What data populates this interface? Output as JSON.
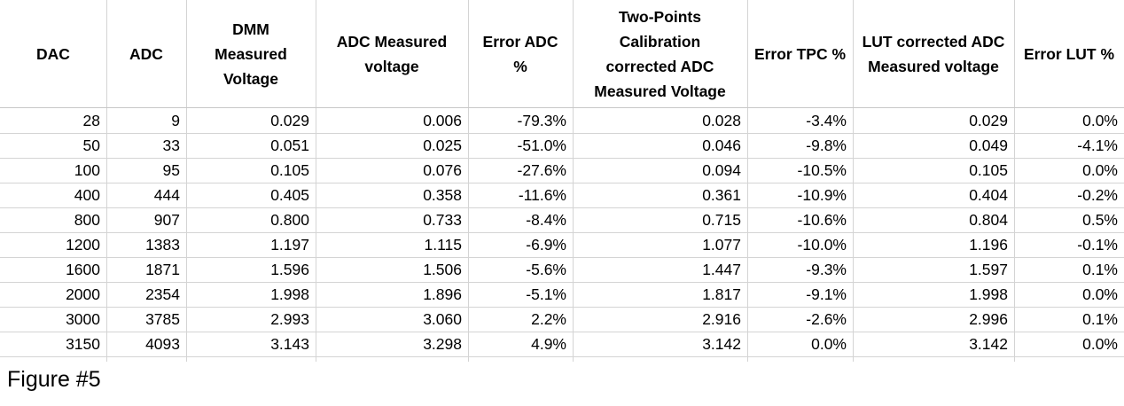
{
  "table": {
    "headers": [
      [
        "DAC"
      ],
      [
        "ADC"
      ],
      [
        "DMM",
        "Measured",
        "Voltage"
      ],
      [
        "ADC Measured",
        "voltage"
      ],
      [
        "Error ADC",
        "%"
      ],
      [
        "Two-Points",
        "Calibration",
        "corrected ADC",
        "Measured Voltage"
      ],
      [
        "Error TPC %"
      ],
      [
        "LUT corrected ADC",
        "Measured voltage"
      ],
      [
        "Error LUT %"
      ]
    ],
    "rows": [
      [
        "28",
        "9",
        "0.029",
        "0.006",
        "-79.3%",
        "0.028",
        "-3.4%",
        "0.029",
        "0.0%"
      ],
      [
        "50",
        "33",
        "0.051",
        "0.025",
        "-51.0%",
        "0.046",
        "-9.8%",
        "0.049",
        "-4.1%"
      ],
      [
        "100",
        "95",
        "0.105",
        "0.076",
        "-27.6%",
        "0.094",
        "-10.5%",
        "0.105",
        "0.0%"
      ],
      [
        "400",
        "444",
        "0.405",
        "0.358",
        "-11.6%",
        "0.361",
        "-10.9%",
        "0.404",
        "-0.2%"
      ],
      [
        "800",
        "907",
        "0.800",
        "0.733",
        "-8.4%",
        "0.715",
        "-10.6%",
        "0.804",
        "0.5%"
      ],
      [
        "1200",
        "1383",
        "1.197",
        "1.115",
        "-6.9%",
        "1.077",
        "-10.0%",
        "1.196",
        "-0.1%"
      ],
      [
        "1600",
        "1871",
        "1.596",
        "1.506",
        "-5.6%",
        "1.447",
        "-9.3%",
        "1.597",
        "0.1%"
      ],
      [
        "2000",
        "2354",
        "1.998",
        "1.896",
        "-5.1%",
        "1.817",
        "-9.1%",
        "1.998",
        "0.0%"
      ],
      [
        "3000",
        "3785",
        "2.993",
        "3.060",
        "2.2%",
        "2.916",
        "-2.6%",
        "2.996",
        "0.1%"
      ],
      [
        "3150",
        "4093",
        "3.143",
        "3.298",
        "4.9%",
        "3.142",
        "0.0%",
        "3.142",
        "0.0%"
      ]
    ]
  },
  "caption": "Figure #5"
}
